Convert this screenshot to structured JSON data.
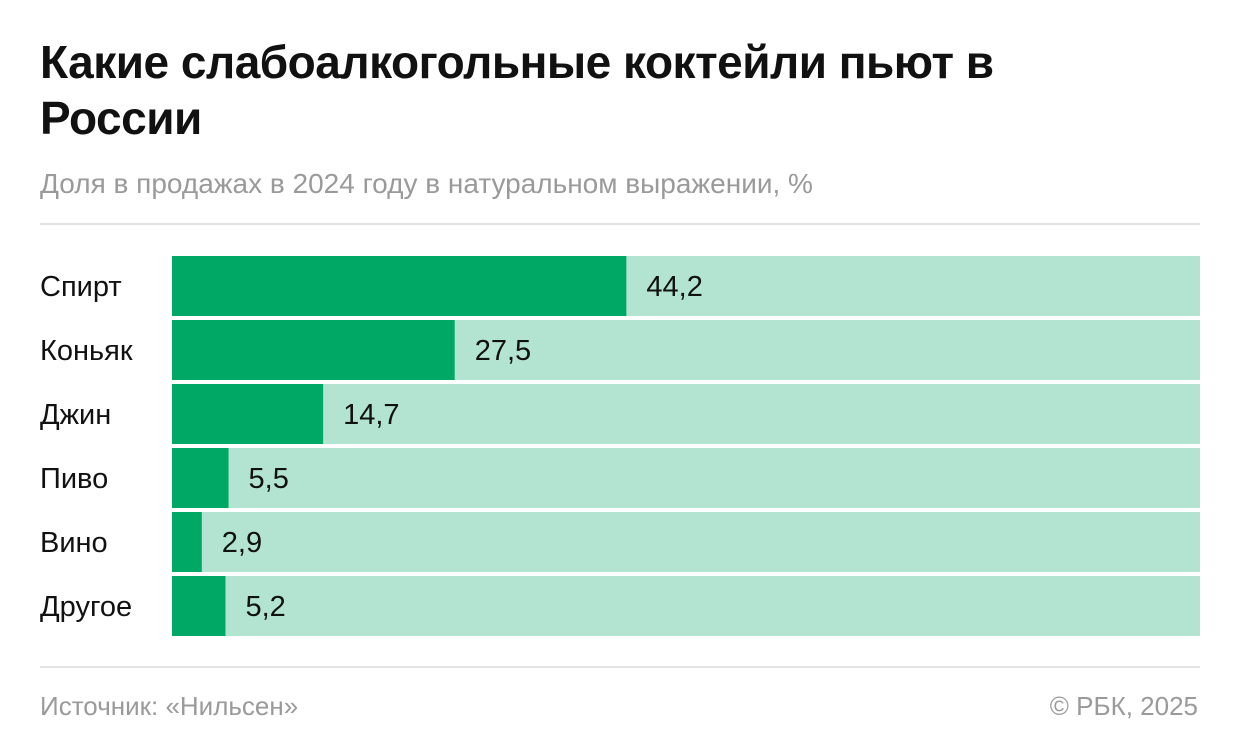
{
  "header": {
    "title": "Какие слабоалкогольные коктейли пьют в России",
    "subtitle": "Доля в продажах в 2024 году в натуральном выражении, %"
  },
  "footer": {
    "source": "Источник: «Нильсен»",
    "copyright": "© РБК, 2025"
  },
  "colors": {
    "bar": "#00a865",
    "track": "#b3e4d1",
    "label": "#111111"
  },
  "chart_data": {
    "type": "bar",
    "orientation": "horizontal",
    "categories": [
      "Спирт",
      "Коньяк",
      "Джин",
      "Пиво",
      "Вино",
      "Другое"
    ],
    "values": [
      44.2,
      27.5,
      14.7,
      5.5,
      2.9,
      5.2
    ],
    "value_labels": [
      "44,2",
      "27,5",
      "14,7",
      "5,5",
      "2,9",
      "5,2"
    ],
    "xlim": [
      0,
      100
    ],
    "unit": "%"
  }
}
